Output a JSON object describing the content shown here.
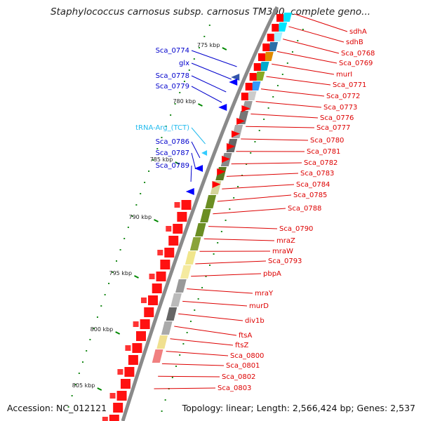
{
  "title": "Staphylococcus carnosus subsp. carnosus TM300, complete geno...",
  "footer": {
    "accession": "Accession: NC_012121",
    "topology": "Topology: linear; Length: 2,566,424 bp; Genes: 2,537"
  },
  "colors": {
    "backbone": "#808080",
    "forward_gene": "#ff0000",
    "reverse_gene": "#0000ff",
    "trna": "#33ccff",
    "kbp_tick": "#008800"
  },
  "kbp_ticks": [
    "775 kbp",
    "780 kbp",
    "785 kbp",
    "790 kbp",
    "795 kbp",
    "800 kbp",
    "805 kbp"
  ],
  "left_labels": [
    {
      "text": "Sca_0774",
      "color": "#0000cc"
    },
    {
      "text": "glx",
      "color": "#0000cc"
    },
    {
      "text": "Sca_0778",
      "color": "#0000cc"
    },
    {
      "text": "Sca_0779",
      "color": "#0000cc"
    },
    {
      "text": "tRNA-Arg_(TCT)",
      "color": "#22bbee"
    },
    {
      "text": "Sca_0786",
      "color": "#0000cc"
    },
    {
      "text": "Sca_0787",
      "color": "#0000cc"
    },
    {
      "text": "Sca_0789",
      "color": "#0000cc"
    }
  ],
  "right_labels": [
    "sdhA",
    "sdhB",
    "Sca_0768",
    "Sca_0769",
    "murI",
    "Sca_0771",
    "Sca_0772",
    "Sca_0773",
    "Sca_0776",
    "Sca_0777",
    "Sca_0780",
    "Sca_0781",
    "Sca_0782",
    "Sca_0783",
    "Sca_0784",
    "Sca_0785",
    "Sca_0788",
    "Sca_0790",
    "mraZ",
    "mraW",
    "Sca_0793",
    "pbpA",
    "mraY",
    "murD",
    "div1b",
    "ftsA",
    "ftsZ",
    "Sca_0800",
    "Sca_0801",
    "Sca_0802",
    "Sca_0803"
  ],
  "right_label_color": "#dd0000"
}
